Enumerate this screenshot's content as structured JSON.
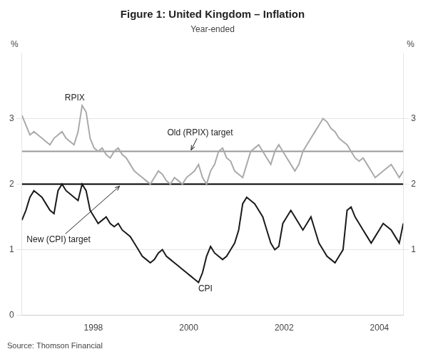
{
  "chart_data": {
    "type": "line",
    "title": "Figure 1: United Kingdom – Inflation",
    "subtitle": "Year-ended",
    "source": "Source: Thomson Financial",
    "ylabel": "%",
    "y2label": "%",
    "x": [
      1996.5,
      1996.5842,
      1996.6684,
      1996.7526,
      1996.8368,
      1996.9211,
      1997.0053,
      1997.0895,
      1997.1737,
      1997.2579,
      1997.3421,
      1997.4263,
      1997.5105,
      1997.5947,
      1997.6789,
      1997.7632,
      1997.8474,
      1997.9316,
      1998.0158,
      1998.1,
      1998.1842,
      1998.2684,
      1998.3526,
      1998.4368,
      1998.5211,
      1998.6053,
      1998.6895,
      1998.7737,
      1998.8579,
      1998.9421,
      1999.0263,
      1999.1105,
      1999.1947,
      1999.2789,
      1999.3632,
      1999.4474,
      1999.5316,
      1999.6158,
      1999.7,
      1999.7842,
      1999.8684,
      1999.9526,
      2000.0368,
      2000.1211,
      2000.2053,
      2000.2895,
      2000.3737,
      2000.4579,
      2000.5421,
      2000.6263,
      2000.7105,
      2000.7947,
      2000.8789,
      2000.9632,
      2001.0474,
      2001.1316,
      2001.2158,
      2001.3,
      2001.3842,
      2001.4684,
      2001.5526,
      2001.6368,
      2001.7211,
      2001.8053,
      2001.8895,
      2001.9737,
      2002.0579,
      2002.1421,
      2002.2263,
      2002.3105,
      2002.3947,
      2002.4789,
      2002.5632,
      2002.6474,
      2002.7316,
      2002.8158,
      2002.9,
      2002.9842,
      2003.0684,
      2003.1526,
      2003.2368,
      2003.3211,
      2003.4053,
      2003.4895,
      2003.5737,
      2003.6579,
      2003.7421,
      2003.8263,
      2003.9105,
      2003.9947,
      2004.0789,
      2004.1632,
      2004.2474,
      2004.3316,
      2004.4158,
      2004.5
    ],
    "series": [
      {
        "color": "#aaaaaa",
        "values": [
          3.05,
          2.9,
          2.75,
          2.8,
          2.75,
          2.7,
          2.65,
          2.6,
          2.7,
          2.75,
          2.8,
          2.7,
          2.65,
          2.6,
          2.8,
          3.2,
          3.1,
          2.7,
          2.55,
          2.5,
          2.55,
          2.45,
          2.4,
          2.5,
          2.55,
          2.45,
          2.4,
          2.3,
          2.2,
          2.15,
          2.1,
          2.05,
          2.0,
          2.1,
          2.2,
          2.15,
          2.05,
          2.0,
          2.1,
          2.05,
          2.0,
          2.1,
          2.15,
          2.2,
          2.3,
          2.1,
          2.0,
          2.2,
          2.3,
          2.5,
          2.55,
          2.4,
          2.35,
          2.2,
          2.15,
          2.1,
          2.3,
          2.5,
          2.55,
          2.6,
          2.5,
          2.4,
          2.3,
          2.5,
          2.6,
          2.5,
          2.4,
          2.3,
          2.2,
          2.3,
          2.5,
          2.6,
          2.7,
          2.8,
          2.9,
          3.0,
          2.95,
          2.85,
          2.8,
          2.7,
          2.65,
          2.6,
          2.5,
          2.4,
          2.35,
          2.4,
          2.3,
          2.2,
          2.1,
          2.15,
          2.2,
          2.25,
          2.3,
          2.2,
          2.1,
          2.2
        ]
      },
      {
        "color": "#1a1a1a",
        "values": [
          1.45,
          1.6,
          1.8,
          1.9,
          1.85,
          1.8,
          1.7,
          1.6,
          1.55,
          1.9,
          2.0,
          1.9,
          1.85,
          1.8,
          1.75,
          2.0,
          1.9,
          1.6,
          1.5,
          1.4,
          1.45,
          1.5,
          1.4,
          1.35,
          1.4,
          1.3,
          1.25,
          1.2,
          1.1,
          1.0,
          0.9,
          0.85,
          0.8,
          0.85,
          0.95,
          1.0,
          0.9,
          0.85,
          0.8,
          0.75,
          0.7,
          0.65,
          0.6,
          0.55,
          0.5,
          0.65,
          0.9,
          1.05,
          0.95,
          0.9,
          0.85,
          0.9,
          1.0,
          1.1,
          1.3,
          1.7,
          1.8,
          1.75,
          1.7,
          1.6,
          1.5,
          1.3,
          1.1,
          1.0,
          1.05,
          1.4,
          1.5,
          1.6,
          1.5,
          1.4,
          1.3,
          1.4,
          1.5,
          1.3,
          1.1,
          1.0,
          0.9,
          0.85,
          0.8,
          0.9,
          1.0,
          1.6,
          1.65,
          1.5,
          1.4,
          1.3,
          1.2,
          1.1,
          1.2,
          1.3,
          1.4,
          1.35,
          1.3,
          1.2,
          1.1,
          1.4
        ]
      }
    ],
    "reference_lines": [
      {
        "y": 2.5,
        "color": "#999999"
      },
      {
        "y": 2.0,
        "color": "#000000"
      }
    ],
    "annotations": [
      {
        "text": "RPIX",
        "x": 1997.4,
        "y": 3.28
      },
      {
        "text": "Old (RPIX) target",
        "x": 1999.55,
        "y": 2.72,
        "arrow_to": [
          2000.05,
          2.52
        ]
      },
      {
        "text": "New (CPI) target",
        "x": 1996.6,
        "y": 1.22,
        "arrow_to": [
          1998.55,
          1.97
        ]
      },
      {
        "text": "CPI",
        "x": 2000.2,
        "y": 0.36
      }
    ],
    "xlim": [
      1996.5,
      2004.5
    ],
    "xticks": [
      1998,
      2000,
      2002,
      2004
    ],
    "ylim": [
      0,
      4
    ],
    "yticks": [
      0,
      1,
      2,
      3
    ],
    "y2lim": [
      0,
      4
    ],
    "y2ticks": [
      1,
      2,
      3
    ],
    "grid": "y"
  }
}
